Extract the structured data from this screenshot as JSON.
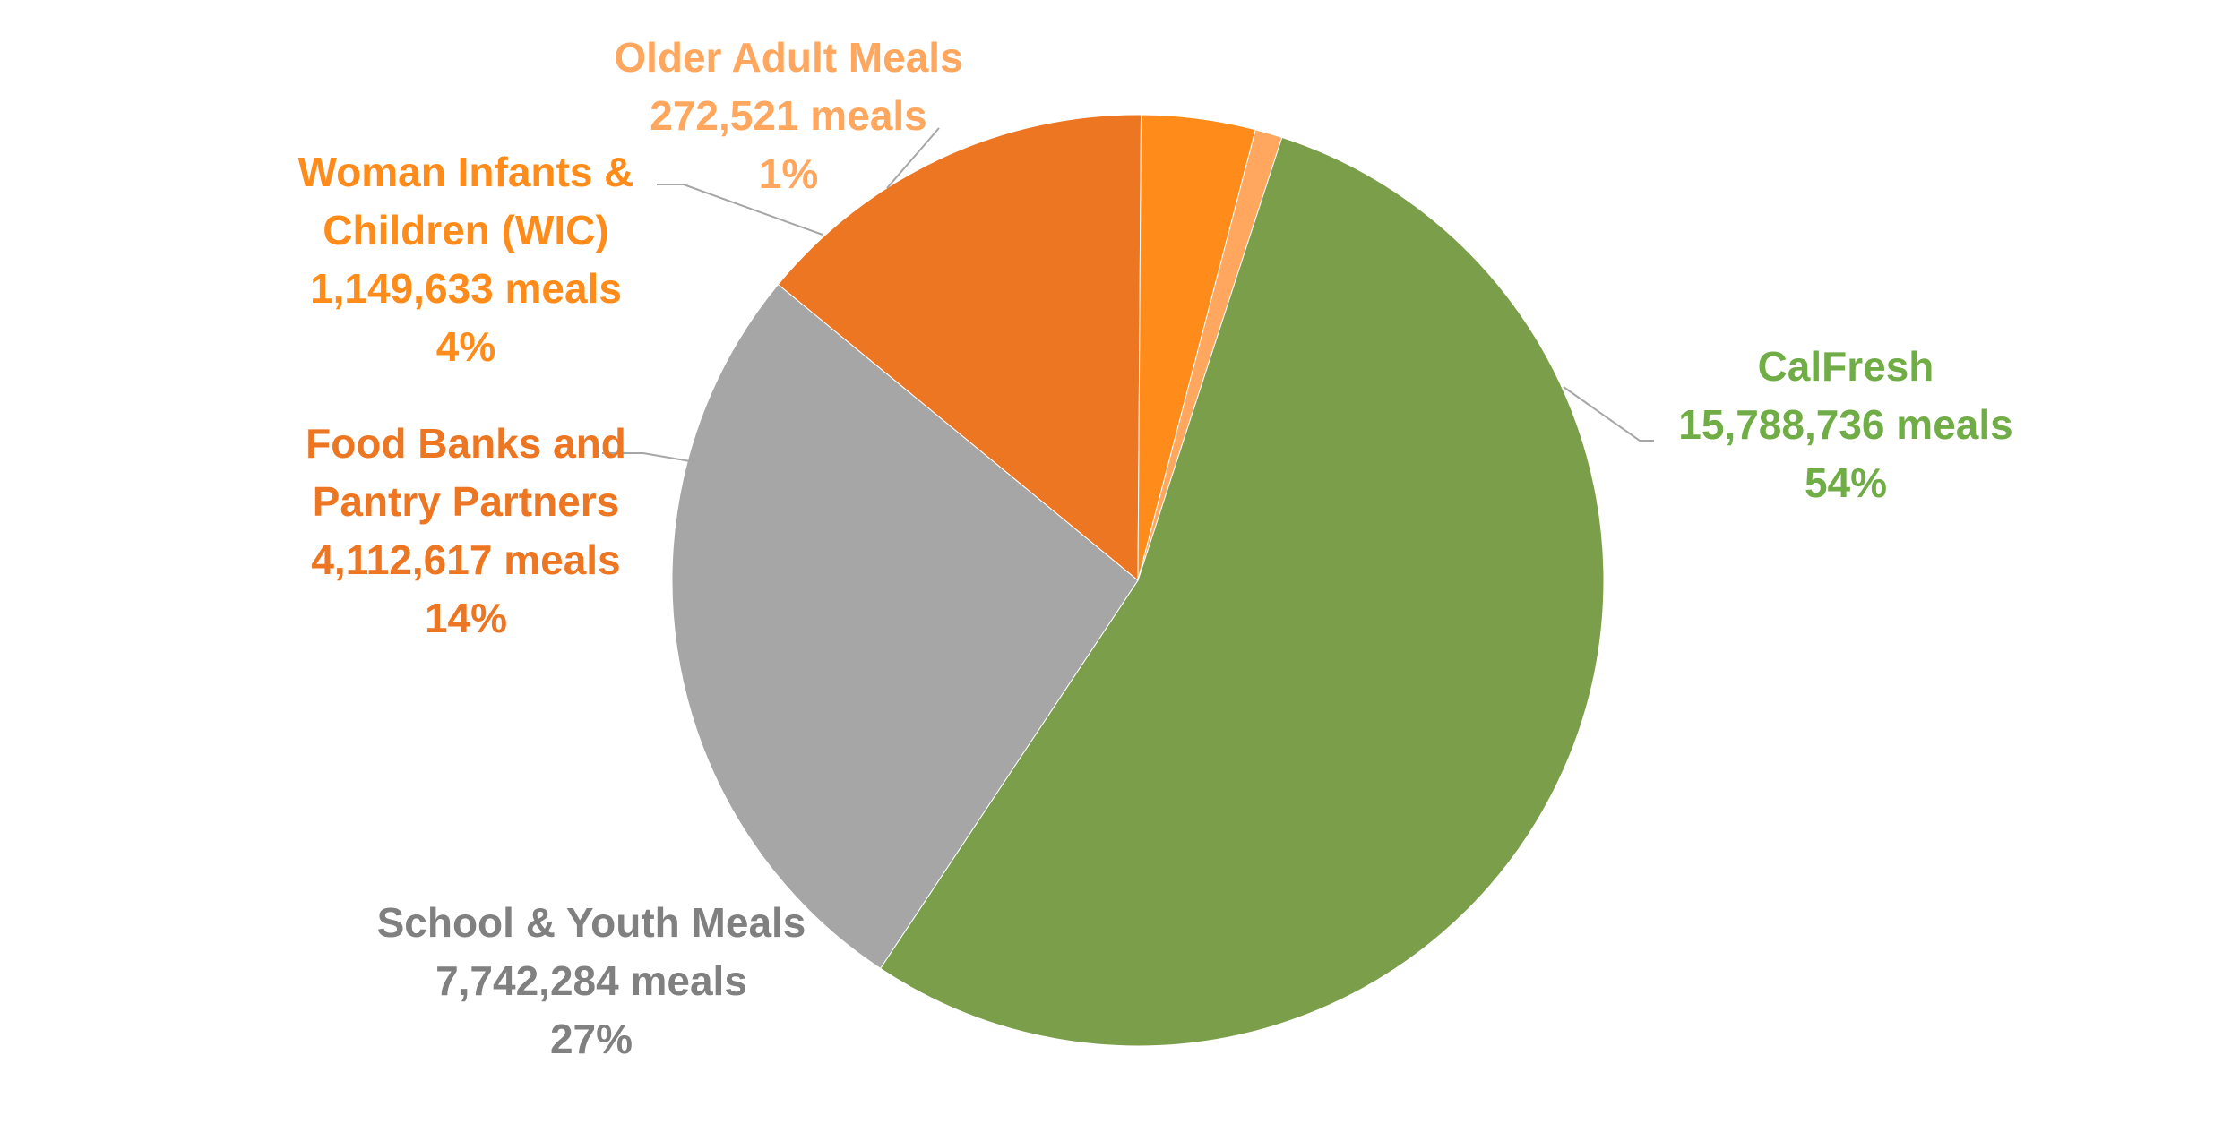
{
  "chart_data": {
    "type": "pie",
    "title": "",
    "start_angle_deg": 18,
    "direction": "clockwise",
    "slices": [
      {
        "name": "CalFresh",
        "value": 15788736,
        "value_label": "15,788,736 meals",
        "percent": 54,
        "percent_label": "54%",
        "color": "#7A9E4A",
        "label_lines": [
          "CalFresh"
        ]
      },
      {
        "name": "School & Youth Meals",
        "value": 7742284,
        "value_label": "7,742,284 meals",
        "percent": 27,
        "percent_label": "27%",
        "color": "#A6A6A6",
        "label_lines": [
          "School & Youth Meals"
        ]
      },
      {
        "name": "Food Banks and Pantry Partners",
        "value": 4112617,
        "value_label": "4,112,617 meals",
        "percent": 14,
        "percent_label": "14%",
        "color": "#ED7623",
        "label_lines": [
          "Food Banks and",
          "Pantry Partners"
        ]
      },
      {
        "name": "Woman Infants & Children (WIC)",
        "value": 1149633,
        "value_label": "1,149,633 meals",
        "percent": 4,
        "percent_label": "4%",
        "color": "#FF8C1A",
        "label_lines": [
          "Woman Infants &",
          "Children (WIC)"
        ]
      },
      {
        "name": "Older Adult Meals",
        "value": 272521,
        "value_label": "272,521 meals",
        "percent": 1,
        "percent_label": "1%",
        "color": "#FFA75E",
        "label_lines": [
          "Older Adult Meals"
        ]
      }
    ],
    "label_colors": [
      "#70AD47",
      "#808080",
      "#ED7623",
      "#FF8C1A",
      "#FFA75E"
    ],
    "leader_line_color": "#A6A6A6"
  }
}
